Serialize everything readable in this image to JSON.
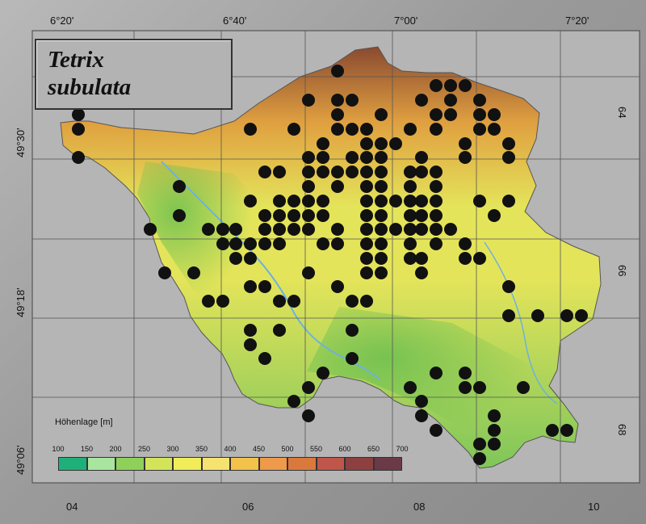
{
  "title": {
    "line1": "Tetrix",
    "line2": "subulata"
  },
  "top_labels": [
    "6°20'",
    "6°40'",
    "7°00'",
    "7°20'"
  ],
  "left_labels": [
    "49°30'",
    "49°18'",
    "49°06'"
  ],
  "right_labels": [
    "64",
    "66",
    "68"
  ],
  "bottom_labels": [
    "04",
    "06",
    "08",
    "10"
  ],
  "legend": {
    "title": "Höhenlage [m]",
    "labels": [
      "100",
      "150",
      "200",
      "250",
      "300",
      "350",
      "400",
      "450",
      "500",
      "550",
      "600",
      "650",
      "700"
    ],
    "colors": [
      "#1fb07a",
      "#a8e6a0",
      "#8fd05a",
      "#d4e45a",
      "#f0ec5a",
      "#f6e270",
      "#f2c24a",
      "#ee9a4a",
      "#d97a3c",
      "#c0564a",
      "#8e4040",
      "#6a3a48",
      "#3e2e42"
    ]
  },
  "map_colors": {
    "lowland": "#7fc65a",
    "mid": "#e4e45a",
    "high": "#e0a040",
    "peak": "#8a4a30",
    "river": "#6fb0e0"
  },
  "occurrence_points": [
    [
      97,
      142
    ],
    [
      97,
      160
    ],
    [
      97,
      195
    ],
    [
      418,
      88
    ],
    [
      540,
      106
    ],
    [
      558,
      106
    ],
    [
      576,
      106
    ],
    [
      382,
      124
    ],
    [
      418,
      124
    ],
    [
      436,
      124
    ],
    [
      522,
      124
    ],
    [
      558,
      124
    ],
    [
      594,
      124
    ],
    [
      418,
      142
    ],
    [
      472,
      142
    ],
    [
      540,
      142
    ],
    [
      558,
      142
    ],
    [
      594,
      142
    ],
    [
      612,
      142
    ],
    [
      310,
      160
    ],
    [
      364,
      160
    ],
    [
      418,
      160
    ],
    [
      436,
      160
    ],
    [
      454,
      160
    ],
    [
      508,
      160
    ],
    [
      540,
      160
    ],
    [
      594,
      160
    ],
    [
      612,
      160
    ],
    [
      630,
      178
    ],
    [
      400,
      178
    ],
    [
      454,
      178
    ],
    [
      472,
      178
    ],
    [
      490,
      178
    ],
    [
      576,
      178
    ],
    [
      382,
      195
    ],
    [
      400,
      195
    ],
    [
      436,
      195
    ],
    [
      454,
      195
    ],
    [
      472,
      195
    ],
    [
      522,
      195
    ],
    [
      576,
      195
    ],
    [
      630,
      195
    ],
    [
      328,
      213
    ],
    [
      346,
      213
    ],
    [
      382,
      213
    ],
    [
      400,
      213
    ],
    [
      418,
      213
    ],
    [
      436,
      213
    ],
    [
      454,
      213
    ],
    [
      472,
      213
    ],
    [
      508,
      213
    ],
    [
      522,
      213
    ],
    [
      540,
      213
    ],
    [
      222,
      231
    ],
    [
      382,
      231
    ],
    [
      418,
      231
    ],
    [
      454,
      231
    ],
    [
      472,
      231
    ],
    [
      508,
      231
    ],
    [
      540,
      231
    ],
    [
      310,
      249
    ],
    [
      346,
      249
    ],
    [
      364,
      249
    ],
    [
      382,
      249
    ],
    [
      400,
      249
    ],
    [
      454,
      249
    ],
    [
      472,
      249
    ],
    [
      490,
      249
    ],
    [
      508,
      249
    ],
    [
      522,
      249
    ],
    [
      540,
      249
    ],
    [
      594,
      249
    ],
    [
      630,
      249
    ],
    [
      222,
      267
    ],
    [
      328,
      267
    ],
    [
      346,
      267
    ],
    [
      364,
      267
    ],
    [
      382,
      267
    ],
    [
      400,
      267
    ],
    [
      454,
      267
    ],
    [
      472,
      267
    ],
    [
      508,
      267
    ],
    [
      522,
      267
    ],
    [
      540,
      267
    ],
    [
      612,
      267
    ],
    [
      186,
      284
    ],
    [
      258,
      284
    ],
    [
      276,
      284
    ],
    [
      292,
      284
    ],
    [
      328,
      284
    ],
    [
      346,
      284
    ],
    [
      364,
      284
    ],
    [
      382,
      284
    ],
    [
      418,
      284
    ],
    [
      454,
      284
    ],
    [
      472,
      284
    ],
    [
      490,
      284
    ],
    [
      508,
      284
    ],
    [
      522,
      284
    ],
    [
      540,
      284
    ],
    [
      558,
      284
    ],
    [
      276,
      302
    ],
    [
      292,
      302
    ],
    [
      310,
      302
    ],
    [
      328,
      302
    ],
    [
      346,
      302
    ],
    [
      400,
      302
    ],
    [
      418,
      302
    ],
    [
      454,
      302
    ],
    [
      472,
      302
    ],
    [
      508,
      302
    ],
    [
      540,
      302
    ],
    [
      576,
      302
    ],
    [
      292,
      320
    ],
    [
      310,
      320
    ],
    [
      454,
      320
    ],
    [
      472,
      320
    ],
    [
      508,
      320
    ],
    [
      522,
      320
    ],
    [
      576,
      320
    ],
    [
      594,
      320
    ],
    [
      204,
      338
    ],
    [
      240,
      338
    ],
    [
      382,
      338
    ],
    [
      454,
      338
    ],
    [
      472,
      338
    ],
    [
      522,
      338
    ],
    [
      310,
      355
    ],
    [
      328,
      355
    ],
    [
      418,
      355
    ],
    [
      630,
      355
    ],
    [
      258,
      373
    ],
    [
      276,
      373
    ],
    [
      346,
      373
    ],
    [
      364,
      373
    ],
    [
      436,
      373
    ],
    [
      454,
      373
    ],
    [
      630,
      391
    ],
    [
      666,
      391
    ],
    [
      702,
      391
    ],
    [
      720,
      391
    ],
    [
      310,
      409
    ],
    [
      346,
      409
    ],
    [
      436,
      409
    ],
    [
      310,
      427
    ],
    [
      328,
      444
    ],
    [
      436,
      444
    ],
    [
      400,
      462
    ],
    [
      540,
      462
    ],
    [
      576,
      462
    ],
    [
      382,
      480
    ],
    [
      508,
      480
    ],
    [
      576,
      480
    ],
    [
      594,
      480
    ],
    [
      648,
      480
    ],
    [
      364,
      497
    ],
    [
      522,
      497
    ],
    [
      382,
      515
    ],
    [
      522,
      515
    ],
    [
      612,
      515
    ],
    [
      540,
      533
    ],
    [
      612,
      533
    ],
    [
      684,
      533
    ],
    [
      702,
      533
    ],
    [
      594,
      550
    ],
    [
      612,
      550
    ],
    [
      594,
      568
    ]
  ]
}
